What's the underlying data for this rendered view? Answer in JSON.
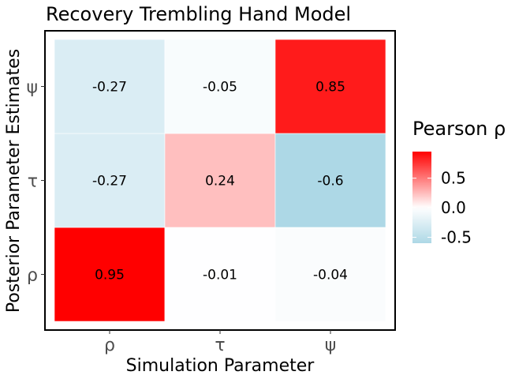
{
  "chart_data": {
    "type": "heatmap",
    "title": "Recovery Trembling Hand Model",
    "xlabel": "Simulation Parameter",
    "ylabel": "Posterior Parameter Estimates",
    "x_categories": [
      "ρ",
      "τ",
      "ψ"
    ],
    "y_categories": [
      "ρ",
      "τ",
      "ψ"
    ],
    "cells": [
      {
        "x": "ρ",
        "y": "ρ",
        "value": 0.95,
        "label": "0.95"
      },
      {
        "x": "τ",
        "y": "ρ",
        "value": -0.01,
        "label": "-0.01"
      },
      {
        "x": "ψ",
        "y": "ρ",
        "value": -0.04,
        "label": "-0.04"
      },
      {
        "x": "ρ",
        "y": "τ",
        "value": -0.27,
        "label": "-0.27"
      },
      {
        "x": "τ",
        "y": "τ",
        "value": 0.24,
        "label": "0.24"
      },
      {
        "x": "ψ",
        "y": "τ",
        "value": -0.6,
        "label": "-0.6"
      },
      {
        "x": "ρ",
        "y": "ψ",
        "value": -0.27,
        "label": "-0.27"
      },
      {
        "x": "τ",
        "y": "ψ",
        "value": -0.05,
        "label": "-0.05"
      },
      {
        "x": "ψ",
        "y": "ψ",
        "value": 0.85,
        "label": "0.85"
      }
    ],
    "legend": {
      "title": "Pearson ρ",
      "placement": "right",
      "breaks": [
        {
          "value": 0.5,
          "label": "0.5"
        },
        {
          "value": 0.0,
          "label": "0.0"
        },
        {
          "value": -0.5,
          "label": "-0.5"
        }
      ],
      "range": [
        -0.6,
        0.95
      ],
      "low_color": "#add8e6",
      "mid_color": "#ffffff",
      "high_color": "#ff0000"
    },
    "grid": false
  }
}
